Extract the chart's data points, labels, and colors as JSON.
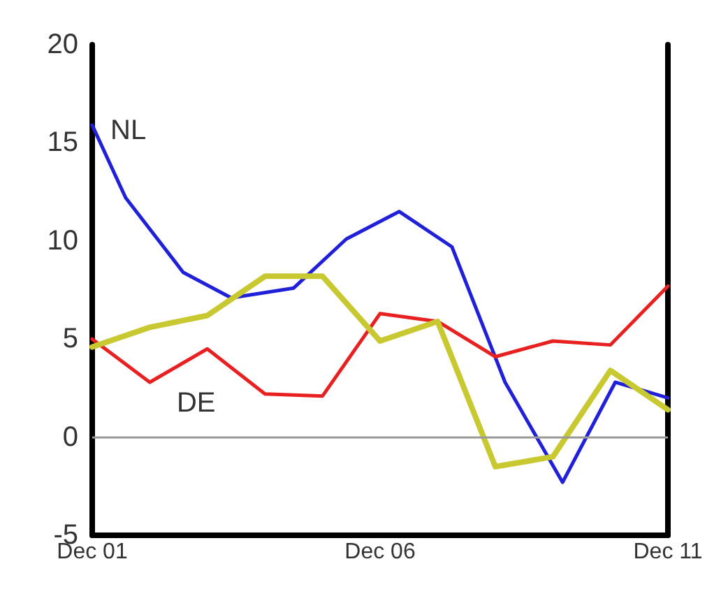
{
  "chart_data": {
    "type": "line",
    "xlim": [
      "2001-12",
      "2011-12"
    ],
    "xticks": [
      {
        "value": "2001-12",
        "label": "Dec 01"
      },
      {
        "value": "2006-12",
        "label": "Dec 06"
      },
      {
        "value": "2011-12",
        "label": "Dec 11"
      }
    ],
    "ylim": [
      -5,
      20
    ],
    "yticks": [
      -5,
      0,
      5,
      10,
      15,
      20
    ],
    "grid": false,
    "legend": false,
    "marker": "none",
    "line_style": "solid",
    "ref_lines": [
      {
        "axis": "y",
        "value": 0,
        "color": "#999999"
      }
    ],
    "series": [
      {
        "name": "NL",
        "color": "#2020d8",
        "x": [
          "2001-12",
          "2002-07",
          "2003-07",
          "2004-05",
          "2005-06",
          "2006-05",
          "2007-04",
          "2008-03",
          "2009-02",
          "2010-02",
          "2011-01",
          "2011-12"
        ],
        "values": [
          15.9,
          12.2,
          8.4,
          7.1,
          7.6,
          10.1,
          11.5,
          9.7,
          2.8,
          -2.3,
          2.8,
          2.0
        ]
      },
      {
        "name": "DE",
        "color": "#e82020",
        "x": [
          "2001-12",
          "2002-12",
          "2003-12",
          "2004-12",
          "2005-12",
          "2006-12",
          "2007-12",
          "2008-12",
          "2009-12",
          "2010-12",
          "2011-12"
        ],
        "values": [
          5.0,
          2.8,
          4.5,
          2.2,
          2.1,
          6.3,
          5.9,
          4.1,
          4.9,
          4.7,
          7.7
        ]
      },
      {
        "color": "#c8c830",
        "x": [
          "2001-12",
          "2002-12",
          "2003-12",
          "2004-12",
          "2005-12",
          "2006-12",
          "2007-12",
          "2008-12",
          "2009-12",
          "2010-12",
          "2011-12"
        ],
        "values": [
          4.6,
          5.6,
          6.2,
          8.2,
          8.2,
          4.9,
          5.9,
          -1.5,
          -1.0,
          3.4,
          1.4
        ]
      }
    ]
  }
}
